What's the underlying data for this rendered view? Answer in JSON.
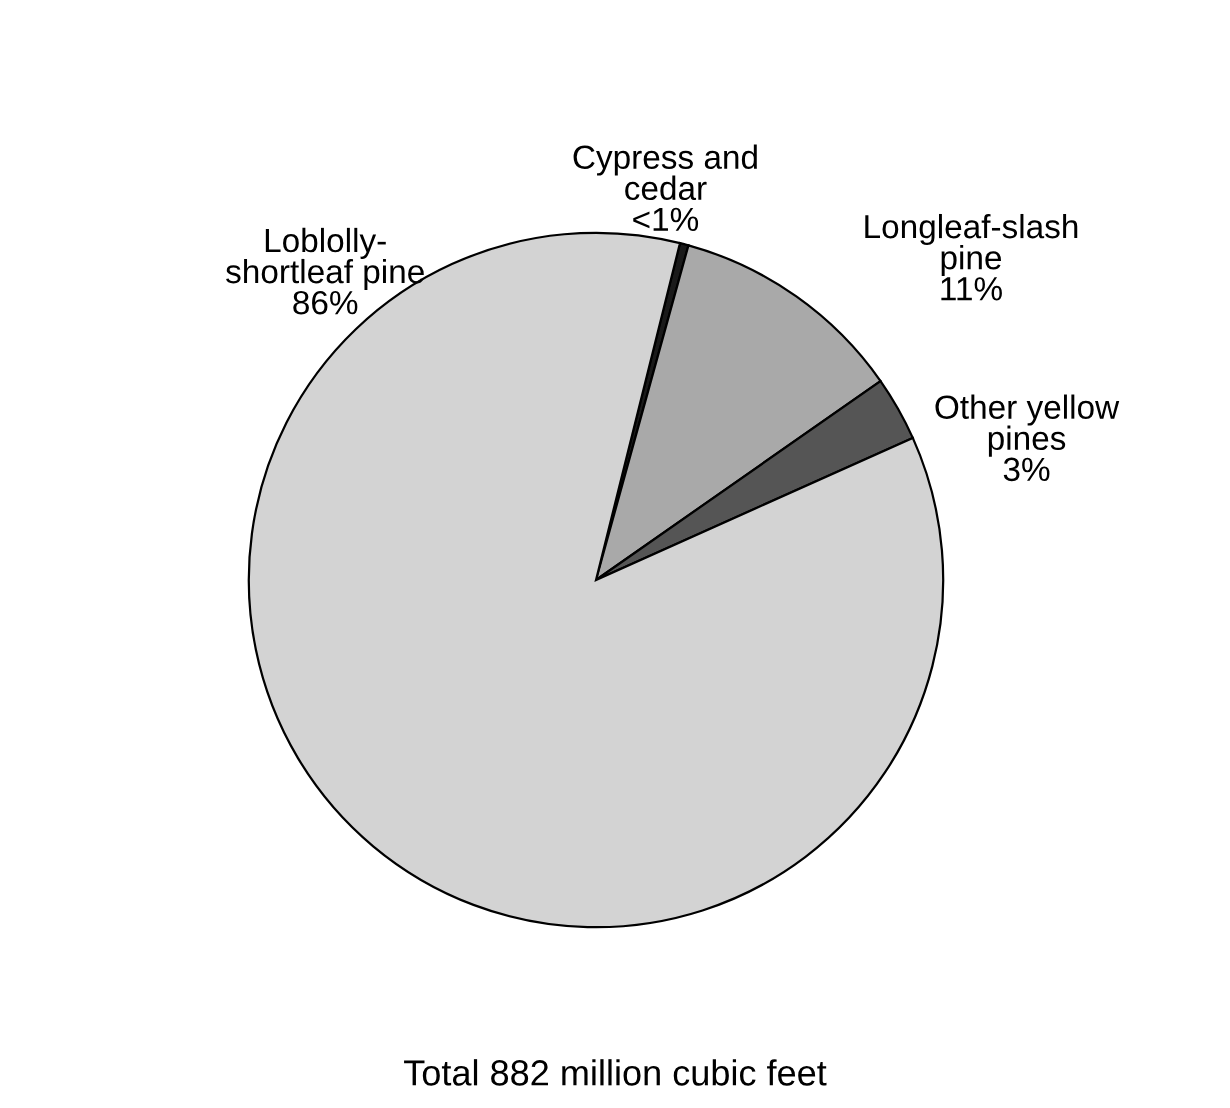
{
  "chart_data": {
    "type": "pie",
    "categories": [
      "Cypress and\ncedar",
      "Longleaf-slash\npine",
      "Other yellow\npines",
      "Loblolly-\nshortleaf pine"
    ],
    "values": [
      0.4,
      11,
      3,
      85.6
    ],
    "value_labels": [
      "<1%",
      "11%",
      "3%",
      "86%"
    ],
    "colors": [
      "#1a1a1a",
      "#a9a9a9",
      "#555555",
      "#d3d3d3"
    ],
    "annotations": [
      "Total 882 million cubic feet"
    ]
  }
}
